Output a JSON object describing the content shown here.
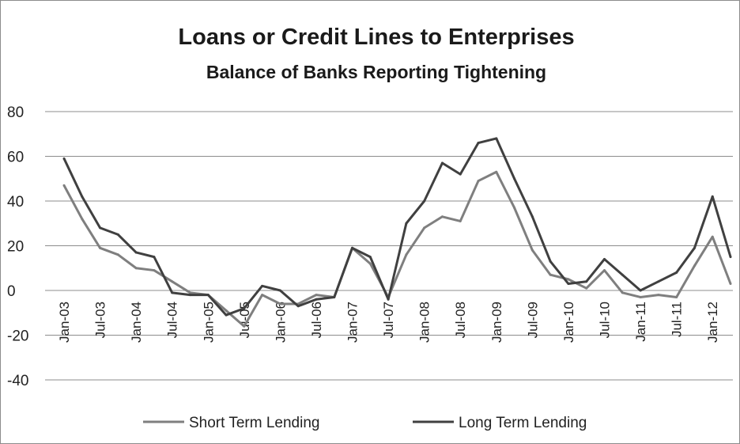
{
  "chart_data": {
    "type": "line",
    "title": "Loans or Credit Lines to Enterprises",
    "subtitle": "Balance of Banks Reporting Tightening",
    "xlabel": "",
    "ylabel": "",
    "ylim": [
      -40,
      80
    ],
    "yticks": [
      -40,
      -20,
      0,
      20,
      40,
      60,
      80
    ],
    "grid": true,
    "legend_position": "bottom",
    "x": [
      "Jan-03",
      "Apr-03",
      "Jul-03",
      "Oct-03",
      "Jan-04",
      "Apr-04",
      "Jul-04",
      "Oct-04",
      "Jan-05",
      "Apr-05",
      "Jul-05",
      "Oct-05",
      "Jan-06",
      "Apr-06",
      "Jul-06",
      "Oct-06",
      "Jan-07",
      "Apr-07",
      "Jul-07",
      "Oct-07",
      "Jan-08",
      "Apr-08",
      "Jul-08",
      "Oct-08",
      "Jan-09",
      "Apr-09",
      "Jul-09",
      "Oct-09",
      "Jan-10",
      "Apr-10",
      "Jul-10",
      "Oct-10",
      "Jan-11",
      "Apr-11",
      "Jul-11",
      "Oct-11",
      "Jan-12",
      "Apr-12"
    ],
    "x_tick_labels": [
      "Jan-03",
      "Jul-03",
      "Jan-04",
      "Jul-04",
      "Jan-05",
      "Jul-05",
      "Jan-06",
      "Jul-06",
      "Jan-07",
      "Jul-07",
      "Jan-08",
      "Jul-08",
      "Jan-09",
      "Jul-09",
      "Jan-10",
      "Jul-10",
      "Jan-11",
      "Jul-11",
      "Jan-12"
    ],
    "series": [
      {
        "name": "Short Term Lending",
        "color": "#7f7f7f",
        "values": [
          47,
          32,
          19,
          16,
          10,
          9,
          4,
          -1,
          -2,
          -9,
          -16,
          -2,
          -6,
          -6,
          -2,
          -3,
          19,
          12,
          -3,
          16,
          28,
          33,
          31,
          49,
          53,
          37,
          18,
          7,
          5,
          1,
          9,
          -1,
          -3,
          -2,
          -3,
          11,
          24,
          3
        ]
      },
      {
        "name": "Long Term Lending",
        "color": "#404040",
        "values": [
          59,
          42,
          28,
          25,
          17,
          15,
          -1,
          -2,
          -2,
          -11,
          -8,
          2,
          0,
          -7,
          -4,
          -3,
          19,
          15,
          -4,
          30,
          40,
          57,
          52,
          66,
          68,
          50,
          33,
          13,
          3,
          4,
          14,
          7,
          0,
          4,
          8,
          19,
          42,
          15
        ]
      }
    ]
  }
}
